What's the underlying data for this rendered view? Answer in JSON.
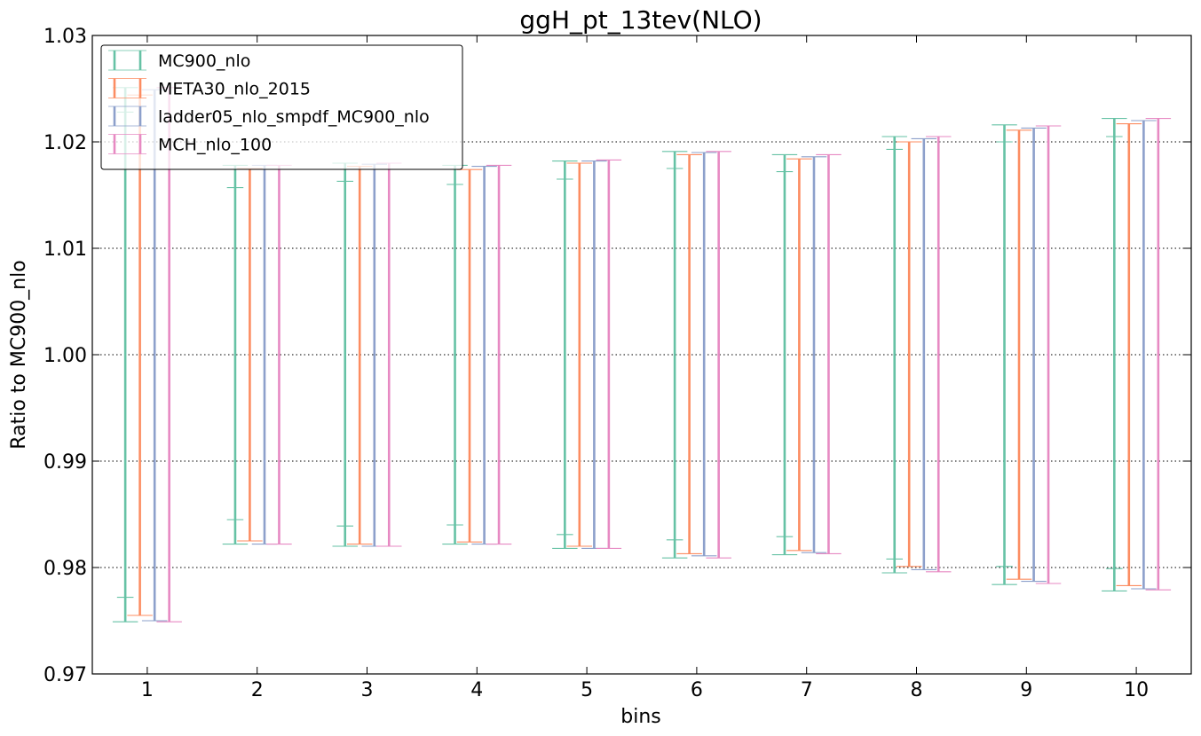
{
  "chart_data": {
    "type": "errorbar",
    "title": "ggH_pt_13tev(NLO)",
    "xlabel": "bins",
    "ylabel": "Ratio to MC900_nlo",
    "xlim": [
      0.5,
      10.5
    ],
    "ylim": [
      0.97,
      1.03
    ],
    "x_ticks": [
      "1",
      "2",
      "3",
      "4",
      "5",
      "6",
      "7",
      "8",
      "9",
      "10"
    ],
    "y_ticks": [
      "0.97",
      "0.98",
      "0.99",
      "1.00",
      "1.01",
      "1.02",
      "1.03"
    ],
    "grid": "horizontal-dotted",
    "legend_position": "upper-left",
    "series": [
      {
        "name": "MC900_nlo",
        "color": "#66c2a5",
        "bins": [
          1,
          2,
          3,
          4,
          5,
          6,
          7,
          8,
          9,
          10
        ],
        "upper": [
          1.0251,
          1.0178,
          1.018,
          1.0178,
          1.0182,
          1.0191,
          1.0188,
          1.0205,
          1.0216,
          1.0222
        ],
        "lower": [
          0.9749,
          0.9822,
          0.982,
          0.9822,
          0.9818,
          0.9809,
          0.9812,
          0.9795,
          0.9784,
          0.9778
        ],
        "inner_upper": [
          1.0228,
          1.0157,
          1.0163,
          1.016,
          1.0165,
          1.0175,
          1.0172,
          1.0193,
          1.02,
          1.0205
        ],
        "inner_lower": [
          0.9772,
          0.9845,
          0.9839,
          0.984,
          0.9831,
          0.9826,
          0.9829,
          0.9808,
          0.9801,
          0.9799
        ]
      },
      {
        "name": "META30_nlo_2015",
        "color": "#fc8d62",
        "bins": [
          1,
          2,
          3,
          4,
          5,
          6,
          7,
          8,
          9,
          10
        ],
        "upper": [
          1.0244,
          1.0175,
          1.0177,
          1.0174,
          1.018,
          1.0188,
          1.0184,
          1.02,
          1.0211,
          1.0217
        ],
        "lower": [
          0.9755,
          0.9825,
          0.9822,
          0.9824,
          0.982,
          0.9813,
          0.9816,
          0.9801,
          0.9789,
          0.9783
        ]
      },
      {
        "name": "ladder05_nlo_smpdf_MC900_nlo",
        "color": "#8da0cb",
        "bins": [
          1,
          2,
          3,
          4,
          5,
          6,
          7,
          8,
          9,
          10
        ],
        "upper": [
          1.0249,
          1.0178,
          1.0179,
          1.0177,
          1.0182,
          1.019,
          1.0186,
          1.0203,
          1.0213,
          1.022
        ],
        "lower": [
          0.975,
          0.9822,
          0.982,
          0.9822,
          0.9818,
          0.9811,
          0.9814,
          0.9798,
          0.9787,
          0.978
        ]
      },
      {
        "name": "MCH_nlo_100",
        "color": "#e78ac3",
        "bins": [
          1,
          2,
          3,
          4,
          5,
          6,
          7,
          8,
          9,
          10
        ],
        "upper": [
          1.0251,
          1.0178,
          1.018,
          1.0178,
          1.0183,
          1.0191,
          1.0188,
          1.0205,
          1.0215,
          1.0222
        ],
        "lower": [
          0.9749,
          0.9822,
          0.982,
          0.9822,
          0.9818,
          0.9809,
          0.9813,
          0.9796,
          0.9785,
          0.9779
        ]
      }
    ]
  }
}
